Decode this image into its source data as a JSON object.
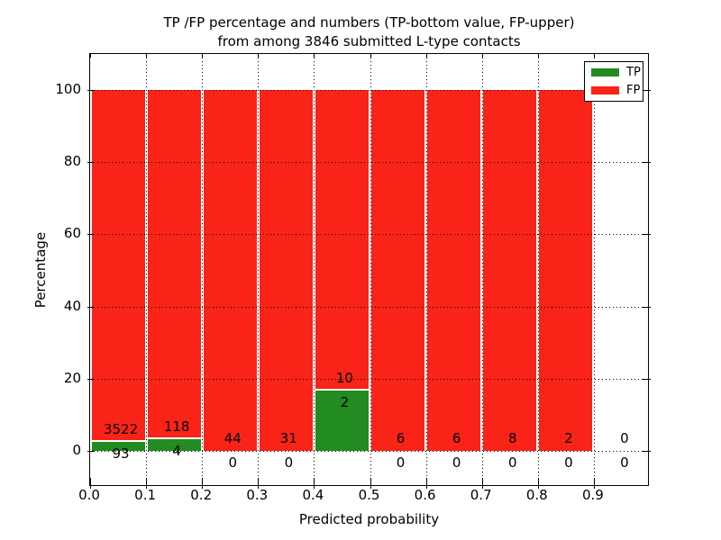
{
  "title": {
    "line1": "TP /FP percentage and numbers (TP-bottom value, FP-upper)",
    "line2": "from among 3846 submitted L-type contacts"
  },
  "axes": {
    "xlabel": "Predicted probability",
    "ylabel": "Percentage"
  },
  "legend": {
    "position": "upper right",
    "items": [
      {
        "label": "TP",
        "color": "#228b22"
      },
      {
        "label": "FP",
        "color": "#f92318"
      }
    ]
  },
  "colors": {
    "tp_green": "#228b22",
    "fp_red": "#f92318",
    "grid": "#000000",
    "background": "#ffffff"
  },
  "chart_data": {
    "type": "bar",
    "stacked": true,
    "title": "TP /FP percentage and numbers (TP-bottom value, FP-upper) from among 3846 submitted L-type contacts",
    "xlabel": "Predicted probability",
    "ylabel": "Percentage",
    "xlim": [
      0.0,
      1.0
    ],
    "ylim": [
      -10,
      110
    ],
    "grid": true,
    "legend_position": "upper right",
    "total_contacts": 3846,
    "xticks": [
      "0.0",
      "0.1",
      "0.2",
      "0.3",
      "0.4",
      "0.5",
      "0.6",
      "0.7",
      "0.8",
      "0.9"
    ],
    "yticks": [
      0,
      20,
      40,
      60,
      80,
      100
    ],
    "bin_width": 0.1,
    "categories": [
      "0.0-0.1",
      "0.1-0.2",
      "0.2-0.3",
      "0.3-0.4",
      "0.4-0.5",
      "0.5-0.6",
      "0.6-0.7",
      "0.7-0.8",
      "0.8-0.9",
      "0.9-1.0"
    ],
    "series": [
      {
        "name": "TP",
        "color": "#228b22",
        "counts": [
          93,
          4,
          0,
          0,
          2,
          0,
          0,
          0,
          0,
          0
        ]
      },
      {
        "name": "FP",
        "color": "#f92318",
        "counts": [
          3522,
          118,
          44,
          31,
          10,
          6,
          6,
          8,
          2,
          0
        ]
      }
    ],
    "bins": [
      {
        "range": "0.0-0.1",
        "tp": 93,
        "fp": 3522,
        "tp_pct": 2.57,
        "fp_pct": 97.43
      },
      {
        "range": "0.1-0.2",
        "tp": 4,
        "fp": 118,
        "tp_pct": 3.28,
        "fp_pct": 96.72
      },
      {
        "range": "0.2-0.3",
        "tp": 0,
        "fp": 44,
        "tp_pct": 0,
        "fp_pct": 100
      },
      {
        "range": "0.3-0.4",
        "tp": 0,
        "fp": 31,
        "tp_pct": 0,
        "fp_pct": 100
      },
      {
        "range": "0.4-0.5",
        "tp": 2,
        "fp": 10,
        "tp_pct": 16.67,
        "fp_pct": 83.33
      },
      {
        "range": "0.5-0.6",
        "tp": 0,
        "fp": 6,
        "tp_pct": 0,
        "fp_pct": 100
      },
      {
        "range": "0.6-0.7",
        "tp": 0,
        "fp": 6,
        "tp_pct": 0,
        "fp_pct": 100
      },
      {
        "range": "0.7-0.8",
        "tp": 0,
        "fp": 8,
        "tp_pct": 0,
        "fp_pct": 100
      },
      {
        "range": "0.8-0.9",
        "tp": 0,
        "fp": 2,
        "tp_pct": 0,
        "fp_pct": 100
      },
      {
        "range": "0.9-1.0",
        "tp": 0,
        "fp": 0,
        "tp_pct": 0,
        "fp_pct": 0
      }
    ]
  }
}
